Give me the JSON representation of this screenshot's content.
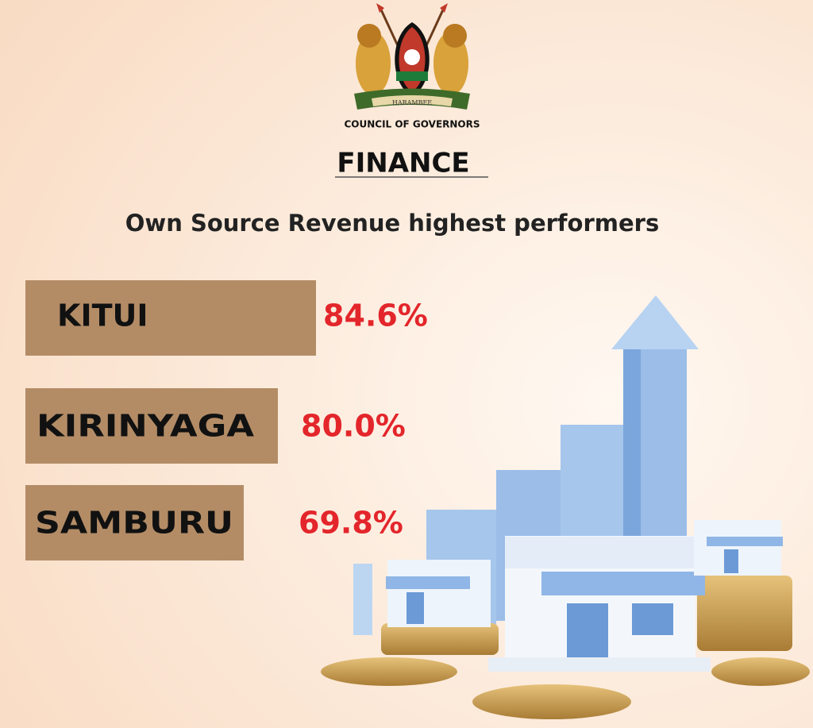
{
  "header": {
    "motto": "HARAMBEE",
    "organization": "COUNCIL OF GOVERNORS",
    "section": "FINANCE",
    "subtitle": "Own Source Revenue highest performers"
  },
  "items": [
    {
      "name": "KITUI",
      "value": "84.6%"
    },
    {
      "name": "KIRINYAGA",
      "value": "80.0%"
    },
    {
      "name": "SAMBURU",
      "value": "69.8%"
    }
  ]
}
